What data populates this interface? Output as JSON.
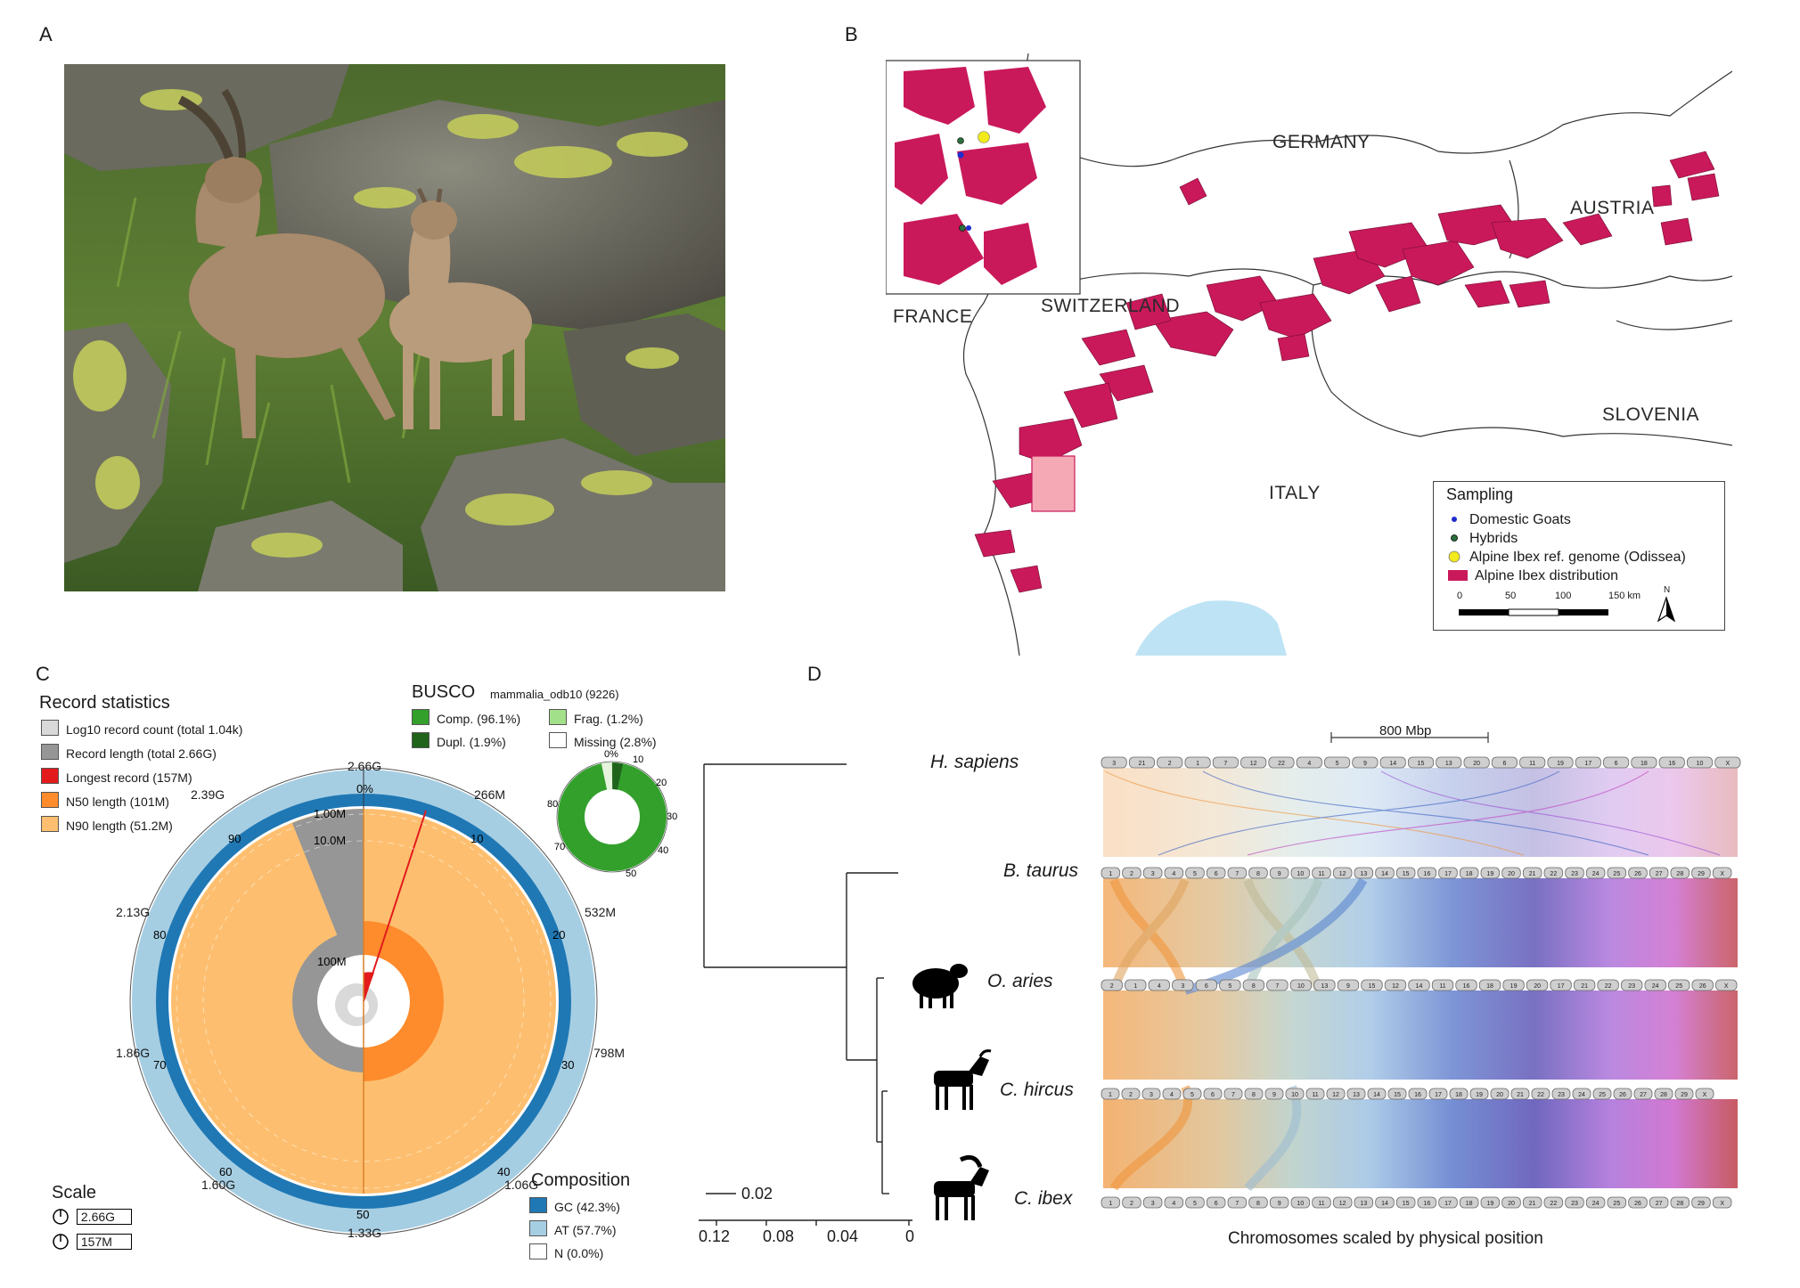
{
  "panels": {
    "a": "A",
    "b": "B",
    "c": "C",
    "d": "D"
  },
  "map": {
    "countries": {
      "germany": "GERMANY",
      "austria": "AUSTRIA",
      "france": "FRANCE",
      "switzerland": "SWITZERLAND",
      "slovenia": "SLOVENIA",
      "italy": "ITALY"
    },
    "legend": {
      "title": "Sampling",
      "items": [
        {
          "label": "Domestic Goats",
          "color": "#1f2ccf"
        },
        {
          "label": "Hybrids",
          "color": "#2c6e3c"
        },
        {
          "label": "Alpine Ibex ref. genome (Odissea)",
          "color": "#f2ea1a"
        },
        {
          "label": "Alpine Ibex distribution",
          "color": "#c9195a"
        }
      ],
      "scale_ticks": [
        "0",
        "50",
        "100",
        "150 km"
      ],
      "north": "N"
    }
  },
  "snail": {
    "record_stats_title": "Record statistics",
    "record_stats": [
      {
        "label": "Log10 record count (total 1.04k)",
        "color": "#d9d9d9"
      },
      {
        "label": "Record length (total 2.66G)",
        "color": "#969696"
      },
      {
        "label": "Longest record (157M)",
        "color": "#e31a1c"
      },
      {
        "label": "N50 length (101M)",
        "color": "#fe8b2c"
      },
      {
        "label": "N90 length (51.2M)",
        "color": "#fdbf6f"
      }
    ],
    "busco_title": "BUSCO",
    "busco_lineage": "mammalia_odb10 (9226)",
    "busco_items": [
      {
        "label": "Comp. (96.1%)",
        "color": "#33a02c"
      },
      {
        "label": "Frag. (1.2%)",
        "color": "#a3e08a"
      },
      {
        "label": "Dupl. (1.9%)",
        "color": "#20641c"
      },
      {
        "label": "Missing (2.8%)",
        "color": "#ffffff"
      }
    ],
    "busco_ticks": [
      "0%",
      "10",
      "20",
      "30",
      "40",
      "50",
      "70",
      "80"
    ],
    "outer_ticks": [
      "2.66G",
      "266M",
      "532M",
      "798M",
      "1.06G",
      "1.33G",
      "1.60G",
      "1.86G",
      "2.13G",
      "2.39G"
    ],
    "inner_ticks": [
      "0%",
      "10",
      "20",
      "30",
      "40",
      "50",
      "60",
      "70",
      "80",
      "90"
    ],
    "radial_labels": [
      "1.00M",
      "10.0M",
      "100M"
    ],
    "scale_title": "Scale",
    "scale_items": [
      "2.66G",
      "157M"
    ],
    "composition_title": "Composition",
    "composition": [
      {
        "label": "GC (42.3%)",
        "color": "#1f78b4"
      },
      {
        "label": "AT (57.7%)",
        "color": "#a6cee3"
      },
      {
        "label": "N (0.0%)",
        "color": "#ffffff"
      }
    ]
  },
  "synteny": {
    "scale_label": "800 Mbp",
    "species": [
      "H. sapiens",
      "B. taurus",
      "O. aries",
      "C. hircus",
      "C. ibex"
    ],
    "tree_scale": "0.02",
    "axis_ticks": [
      "0.12",
      "0.08",
      "0.04",
      "0"
    ],
    "xlabel": "Chromosomes scaled by physical position",
    "human_chroms": [
      "3",
      "21",
      "2",
      "1",
      "7",
      "12",
      "22",
      "4",
      "5",
      "9",
      "14",
      "15",
      "13",
      "20",
      "6",
      "11",
      "19",
      "17",
      "6",
      "18",
      "16",
      "10",
      "X"
    ],
    "bovid_chroms": [
      "1",
      "2",
      "3",
      "4",
      "5",
      "6",
      "7",
      "8",
      "9",
      "10",
      "11",
      "12",
      "13",
      "14",
      "15",
      "16",
      "17",
      "18",
      "19",
      "20",
      "21",
      "22",
      "23",
      "24",
      "25",
      "26",
      "27",
      "28",
      "29",
      "X"
    ],
    "sheep_chroms": [
      "2",
      "1",
      "4",
      "3",
      "6",
      "5",
      "8",
      "7",
      "10",
      "13",
      "9",
      "15",
      "12",
      "14",
      "11",
      "16",
      "18",
      "19",
      "20",
      "17",
      "21",
      "22",
      "23",
      "24",
      "25",
      "26",
      "X"
    ]
  }
}
